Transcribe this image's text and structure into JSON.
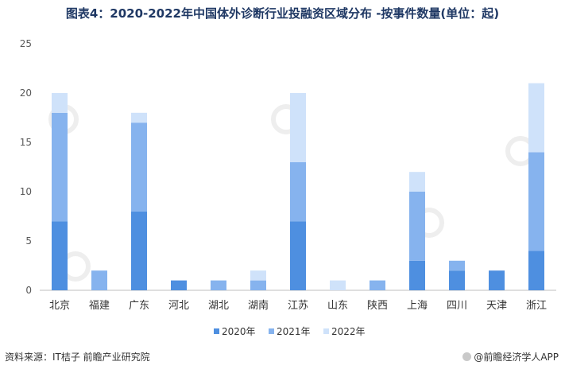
{
  "page": {
    "title": "图表4：2020-2022年中国体外诊断行业投融资区域分布 -按事件数量(单位：起)",
    "source": "资料来源：IT桔子 前瞻产业研究院",
    "brand": "@前瞻经济学人APP"
  },
  "chart_data": {
    "type": "bar",
    "stacked": true,
    "categories": [
      "北京",
      "福建",
      "广东",
      "河北",
      "湖北",
      "湖南",
      "江苏",
      "山东",
      "陕西",
      "上海",
      "四川",
      "天津",
      "浙江"
    ],
    "series": [
      {
        "name": "2020年",
        "color": "#4e8fe0",
        "values": [
          7,
          0,
          8,
          1,
          0,
          0,
          7,
          0,
          0,
          3,
          2,
          2,
          4
        ]
      },
      {
        "name": "2021年",
        "color": "#86b3ee",
        "values": [
          11,
          2,
          9,
          0,
          1,
          1,
          6,
          0,
          1,
          7,
          1,
          0,
          10
        ]
      },
      {
        "name": "2022年",
        "color": "#cfe2fa",
        "values": [
          2,
          0,
          1,
          0,
          0,
          1,
          7,
          1,
          0,
          2,
          0,
          0,
          7
        ]
      }
    ],
    "ylim": [
      0,
      25
    ],
    "yticks": [
      0,
      5,
      10,
      15,
      20,
      25
    ],
    "legend_position": "bottom",
    "grid": false
  }
}
